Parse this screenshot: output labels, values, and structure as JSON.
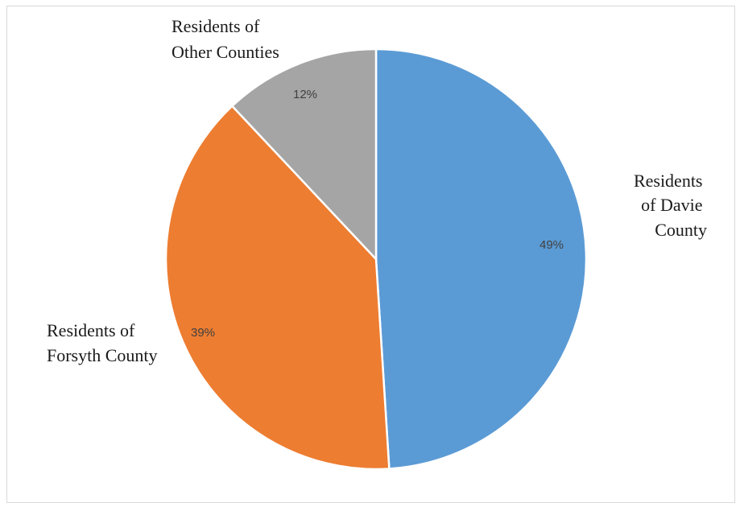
{
  "chart_data": {
    "type": "pie",
    "title": "",
    "slices": [
      {
        "name": "Residents of Davie County",
        "label_lines": [
          "Residents",
          "of Davie",
          "County"
        ],
        "value": 49,
        "value_label": "49%",
        "color": "#5b9bd5"
      },
      {
        "name": "Residents of Forsyth County",
        "label_lines": [
          "Residents of",
          "Forsyth County"
        ],
        "value": 39,
        "value_label": "39%",
        "color": "#ed7d31"
      },
      {
        "name": "Residents of Other Counties",
        "label_lines": [
          "Residents of",
          "Other Counties"
        ],
        "value": 12,
        "value_label": "12%",
        "color": "#a5a5a5"
      }
    ],
    "start": "12 o'clock",
    "direction": "clockwise",
    "legend": "none"
  }
}
